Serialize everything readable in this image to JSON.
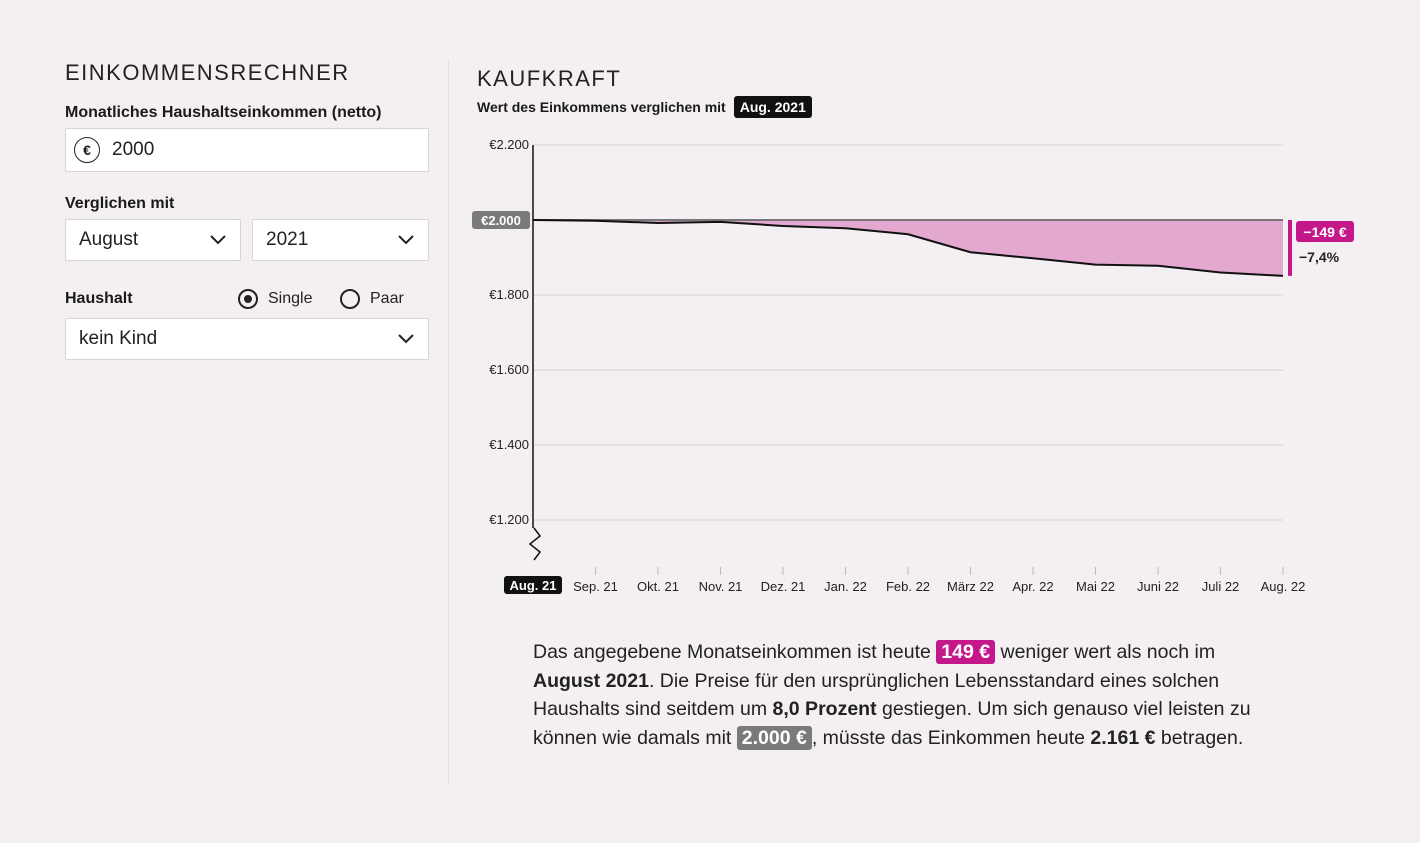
{
  "calculator": {
    "title": "EINKOMMENSRECHNER",
    "income_label": "Monatliches Haushaltseinkommen (netto)",
    "currency_symbol": "€",
    "income_value": "2000",
    "compare_label": "Verglichen mit",
    "month_value": "August",
    "year_value": "2021",
    "household_label": "Haushalt",
    "radio_single": "Single",
    "radio_paar": "Paar",
    "selected_household": "Single",
    "children_value": "kein Kind"
  },
  "chart": {
    "title": "KAUFKRAFT",
    "subtitle": "Wert des Einkommens verglichen mit",
    "subtitle_badge": "Aug. 2021"
  },
  "chart_data": {
    "type": "area",
    "title": "Kaufkraft",
    "categories": [
      "Aug. 21",
      "Sep. 21",
      "Okt. 21",
      "Nov. 21",
      "Dez. 21",
      "Jan. 22",
      "Feb. 22",
      "März 22",
      "Apr. 22",
      "Mai 22",
      "Juni 22",
      "Juli 22",
      "Aug. 22"
    ],
    "values": [
      2000,
      1998,
      1992,
      1995,
      1984,
      1978,
      1962,
      1914,
      1898,
      1881,
      1878,
      1860,
      1851
    ],
    "baseline": 2000,
    "baseline_label": "€2.000",
    "ylim": [
      1200,
      2200
    ],
    "yticks": [
      1200,
      1400,
      1600,
      1800,
      2000,
      2200
    ],
    "ytick_labels": [
      "€1.200",
      "€1.400",
      "€1.600",
      "€1.800",
      "€2.000",
      "€2.200"
    ],
    "highlight_category": "Aug. 21",
    "diff_label": "−149 €",
    "pct_label": "−7,4%",
    "colors": {
      "area": "#e2a8d0",
      "accent": "#c4178a",
      "line": "#111111",
      "baseline": "#777777",
      "grid": "#d5d0d4"
    }
  },
  "summary": {
    "p1": "Das angegebene Monatseinkommen ist heute ",
    "amount_loss": "149 €",
    "p2": " weniger wert als noch im ",
    "ref_date": "August 2021",
    "p3": ". Die Preise für den ursprünglichen Lebensstandard eines solchen Haushalts sind seitdem um ",
    "pct_increase": "8,0 Prozent",
    "p4": " gestiegen. Um sich genauso viel leisten zu können wie damals mit ",
    "amount_then": "2.000 €",
    "p5": ", müsste das Einkommen heute ",
    "amount_needed": "2.161 €",
    "p6": " betragen."
  }
}
